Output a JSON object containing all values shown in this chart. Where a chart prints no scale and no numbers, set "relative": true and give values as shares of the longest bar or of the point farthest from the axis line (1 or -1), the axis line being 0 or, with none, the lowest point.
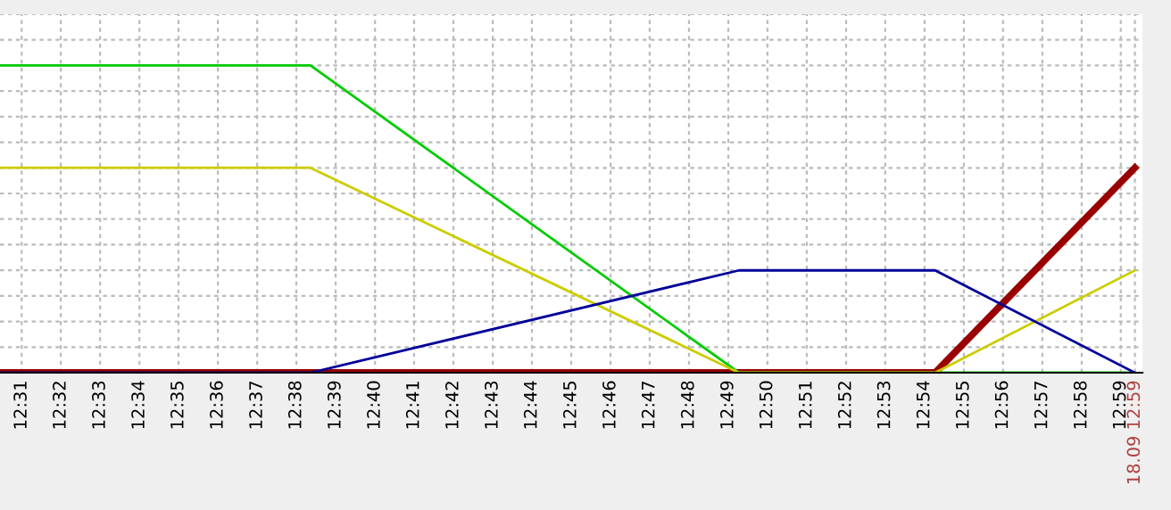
{
  "chart_data": {
    "type": "line",
    "relative": true,
    "grid": true,
    "marker": "none",
    "line_style": "solid",
    "x": [
      12.5075,
      12.6393,
      12.8212,
      12.9045,
      12.9893
    ],
    "xlim": [
      12.5075,
      12.9925
    ],
    "xticks": [
      {
        "value": 12.5167,
        "label": "12:31"
      },
      {
        "value": 12.5333,
        "label": "12:32"
      },
      {
        "value": 12.55,
        "label": "12:33"
      },
      {
        "value": 12.5667,
        "label": "12:34"
      },
      {
        "value": 12.5833,
        "label": "12:35"
      },
      {
        "value": 12.6,
        "label": "12:36"
      },
      {
        "value": 12.6167,
        "label": "12:37"
      },
      {
        "value": 12.6333,
        "label": "12:38"
      },
      {
        "value": 12.65,
        "label": "12:39"
      },
      {
        "value": 12.6667,
        "label": "12:40"
      },
      {
        "value": 12.6833,
        "label": "12:41"
      },
      {
        "value": 12.7,
        "label": "12:42"
      },
      {
        "value": 12.7167,
        "label": "12:43"
      },
      {
        "value": 12.7333,
        "label": "12:44"
      },
      {
        "value": 12.75,
        "label": "12:45"
      },
      {
        "value": 12.7667,
        "label": "12:46"
      },
      {
        "value": 12.7833,
        "label": "12:47"
      },
      {
        "value": 12.8,
        "label": "12:48"
      },
      {
        "value": 12.8167,
        "label": "12:49"
      },
      {
        "value": 12.8333,
        "label": "12:50"
      },
      {
        "value": 12.85,
        "label": "12:51"
      },
      {
        "value": 12.8667,
        "label": "12:52"
      },
      {
        "value": 12.8833,
        "label": "12:53"
      },
      {
        "value": 12.9,
        "label": "12:54"
      },
      {
        "value": 12.9167,
        "label": "12:55"
      },
      {
        "value": 12.9333,
        "label": "12:56"
      },
      {
        "value": 12.95,
        "label": "12:57"
      },
      {
        "value": 12.9667,
        "label": "12:58"
      },
      {
        "value": 12.9833,
        "label": "12:59"
      },
      {
        "value": 12.9893,
        "label": "18.09 12:59"
      }
    ],
    "series": [
      {
        "color": "#990000",
        "values": [
          0,
          0,
          0,
          0,
          0.667
        ]
      },
      {
        "color": "#00cc00",
        "values": [
          1,
          1,
          0,
          0,
          0
        ]
      },
      {
        "color": "#cccc00",
        "values": [
          0.667,
          0.667,
          0,
          0,
          0.333
        ]
      },
      {
        "color": "#000099",
        "values": [
          0,
          0,
          0.333,
          0.333,
          0
        ]
      }
    ]
  }
}
